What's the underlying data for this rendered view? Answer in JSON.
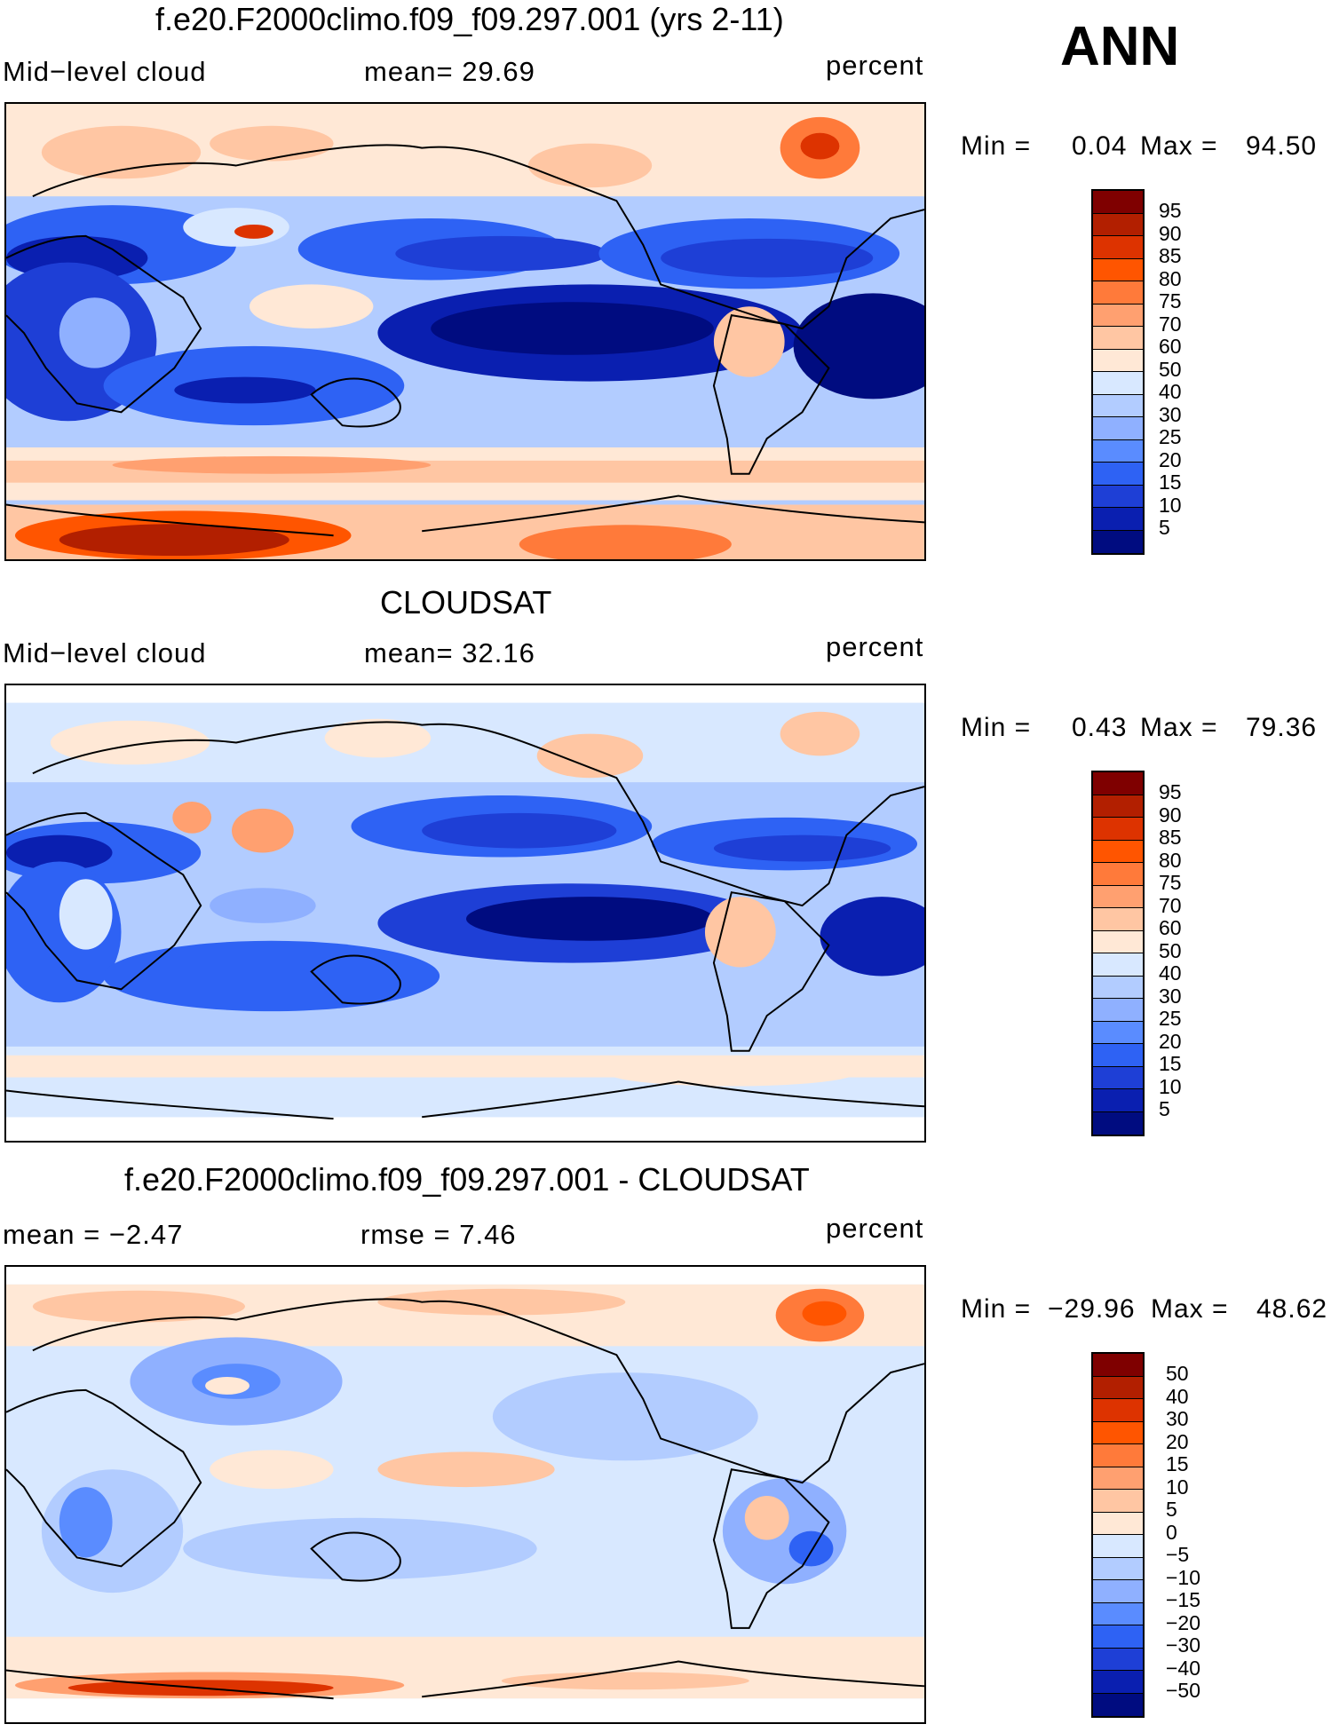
{
  "season": "ANN",
  "units": "percent",
  "palette_colors": [
    "#7f0000",
    "#b21f00",
    "#dd3300",
    "#ff5500",
    "#ff7a3a",
    "#ffa070",
    "#ffc6a3",
    "#ffe8d6",
    "#d8e8ff",
    "#b2ccff",
    "#8fb0ff",
    "#5a8cff",
    "#2e62f4",
    "#1e3fd6",
    "#0a1fb0",
    "#000c80"
  ],
  "panels": [
    {
      "title": "f.e20.F2000climo.f09_f09.297.001 (yrs 2-11)",
      "left_label": "Mid−level cloud",
      "center_label": "mean=   29.69",
      "right_label": "percent",
      "min_label": "Min =",
      "min_value": "0.04",
      "max_label": "Max =",
      "max_value": "94.50",
      "colorbar_labels": [
        "95",
        "90",
        "85",
        "80",
        "75",
        "70",
        "60",
        "50",
        "40",
        "30",
        "25",
        "20",
        "15",
        "10",
        "5"
      ]
    },
    {
      "title": "CLOUDSAT",
      "left_label": "Mid−level cloud",
      "center_label": "mean=   32.16",
      "right_label": "percent",
      "min_label": "Min =",
      "min_value": "0.43",
      "max_label": "Max =",
      "max_value": "79.36",
      "colorbar_labels": [
        "95",
        "90",
        "85",
        "80",
        "75",
        "70",
        "60",
        "50",
        "40",
        "30",
        "25",
        "20",
        "15",
        "10",
        "5"
      ]
    },
    {
      "title": "f.e20.F2000climo.f09_f09.297.001 - CLOUDSAT",
      "left_label": "mean  =   −2.47",
      "center_label": "rmse  =    7.46",
      "right_label": "percent",
      "min_label": "Min =",
      "min_value": "−29.96",
      "max_label": "Max =",
      "max_value": "48.62",
      "colorbar_labels": [
        "50",
        "40",
        "30",
        "20",
        "15",
        "10",
        "5",
        "0",
        "−5",
        "−10",
        "−15",
        "−20",
        "−30",
        "−40",
        "−50"
      ]
    }
  ]
}
